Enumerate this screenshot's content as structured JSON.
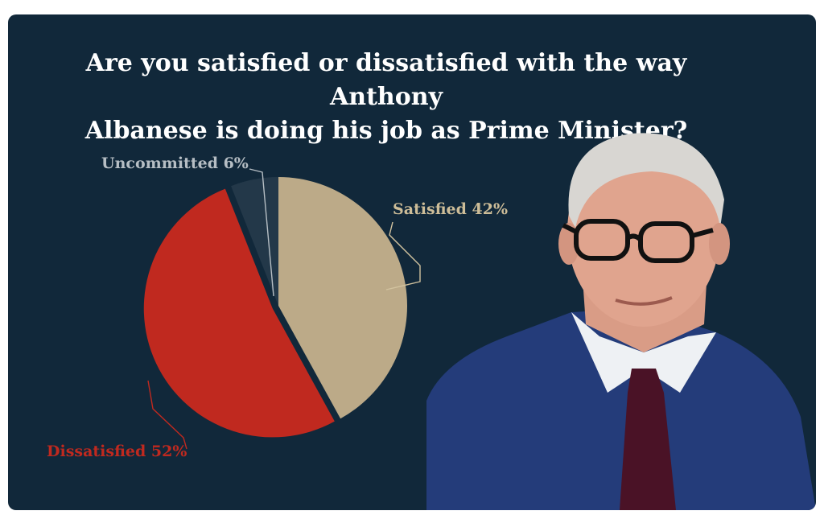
{
  "title_line1": "Are you satisfied or dissatisfied with the way Anthony",
  "title_line2": "Albanese is doing his job as Prime Minister?",
  "chart_data": {
    "type": "pie",
    "title": "Are you satisfied or dissatisfied with the way Anthony Albanese is doing his job as Prime Minister?",
    "slices": [
      {
        "label": "Satisfied",
        "value": 42,
        "display": "Satisfied 42%",
        "color": "#bcaa88"
      },
      {
        "label": "Dissatisfied",
        "value": 52,
        "display": "Dissatisfied 52%",
        "color": "#c0291f"
      },
      {
        "label": "Uncommitted",
        "value": 6,
        "display": "Uncommitted 6%",
        "color": "#ffffff"
      }
    ],
    "legend": "none"
  },
  "colors": {
    "background": "#11283a",
    "satisfied": "#bcaa88",
    "dissatisfied": "#c0291f",
    "uncommitted_label": "#b6bec4"
  },
  "image": {
    "subject": "portrait-photo"
  }
}
